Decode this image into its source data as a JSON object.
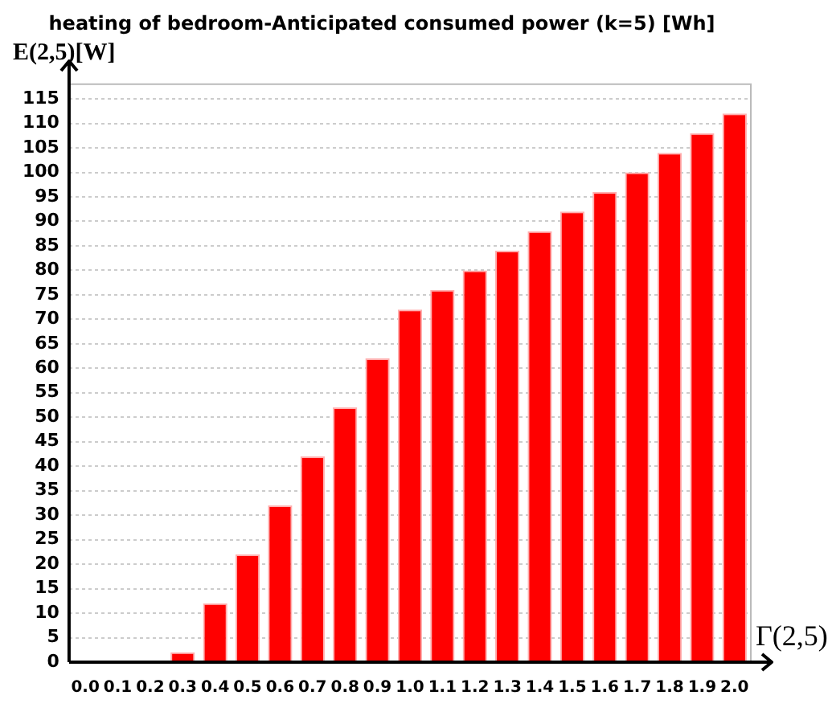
{
  "chart_data": {
    "type": "bar",
    "title": "heating of bedroom-Anticipated consumed power (k=5) [Wh]",
    "xlabel": "Γ(2,5)",
    "ylabel": "E(2,5)[W]",
    "categories": [
      "0.0",
      "0.1",
      "0.2",
      "0.3",
      "0.4",
      "0.5",
      "0.6",
      "0.7",
      "0.8",
      "0.9",
      "1.0",
      "1.1",
      "1.2",
      "1.3",
      "1.4",
      "1.5",
      "1.6",
      "1.7",
      "1.8",
      "1.9",
      "2.0"
    ],
    "values": [
      0,
      0,
      0,
      2,
      12,
      22,
      32,
      42,
      52,
      62,
      72,
      76,
      80,
      84,
      88,
      92,
      96,
      100,
      104,
      108,
      112
    ],
    "color": "#ff0000",
    "ylim": [
      0,
      118
    ],
    "yticks": [
      0,
      5,
      10,
      15,
      20,
      25,
      30,
      35,
      40,
      45,
      50,
      55,
      60,
      65,
      70,
      75,
      80,
      85,
      90,
      95,
      100,
      105,
      110,
      115
    ],
    "grid": "y",
    "legend": false
  }
}
